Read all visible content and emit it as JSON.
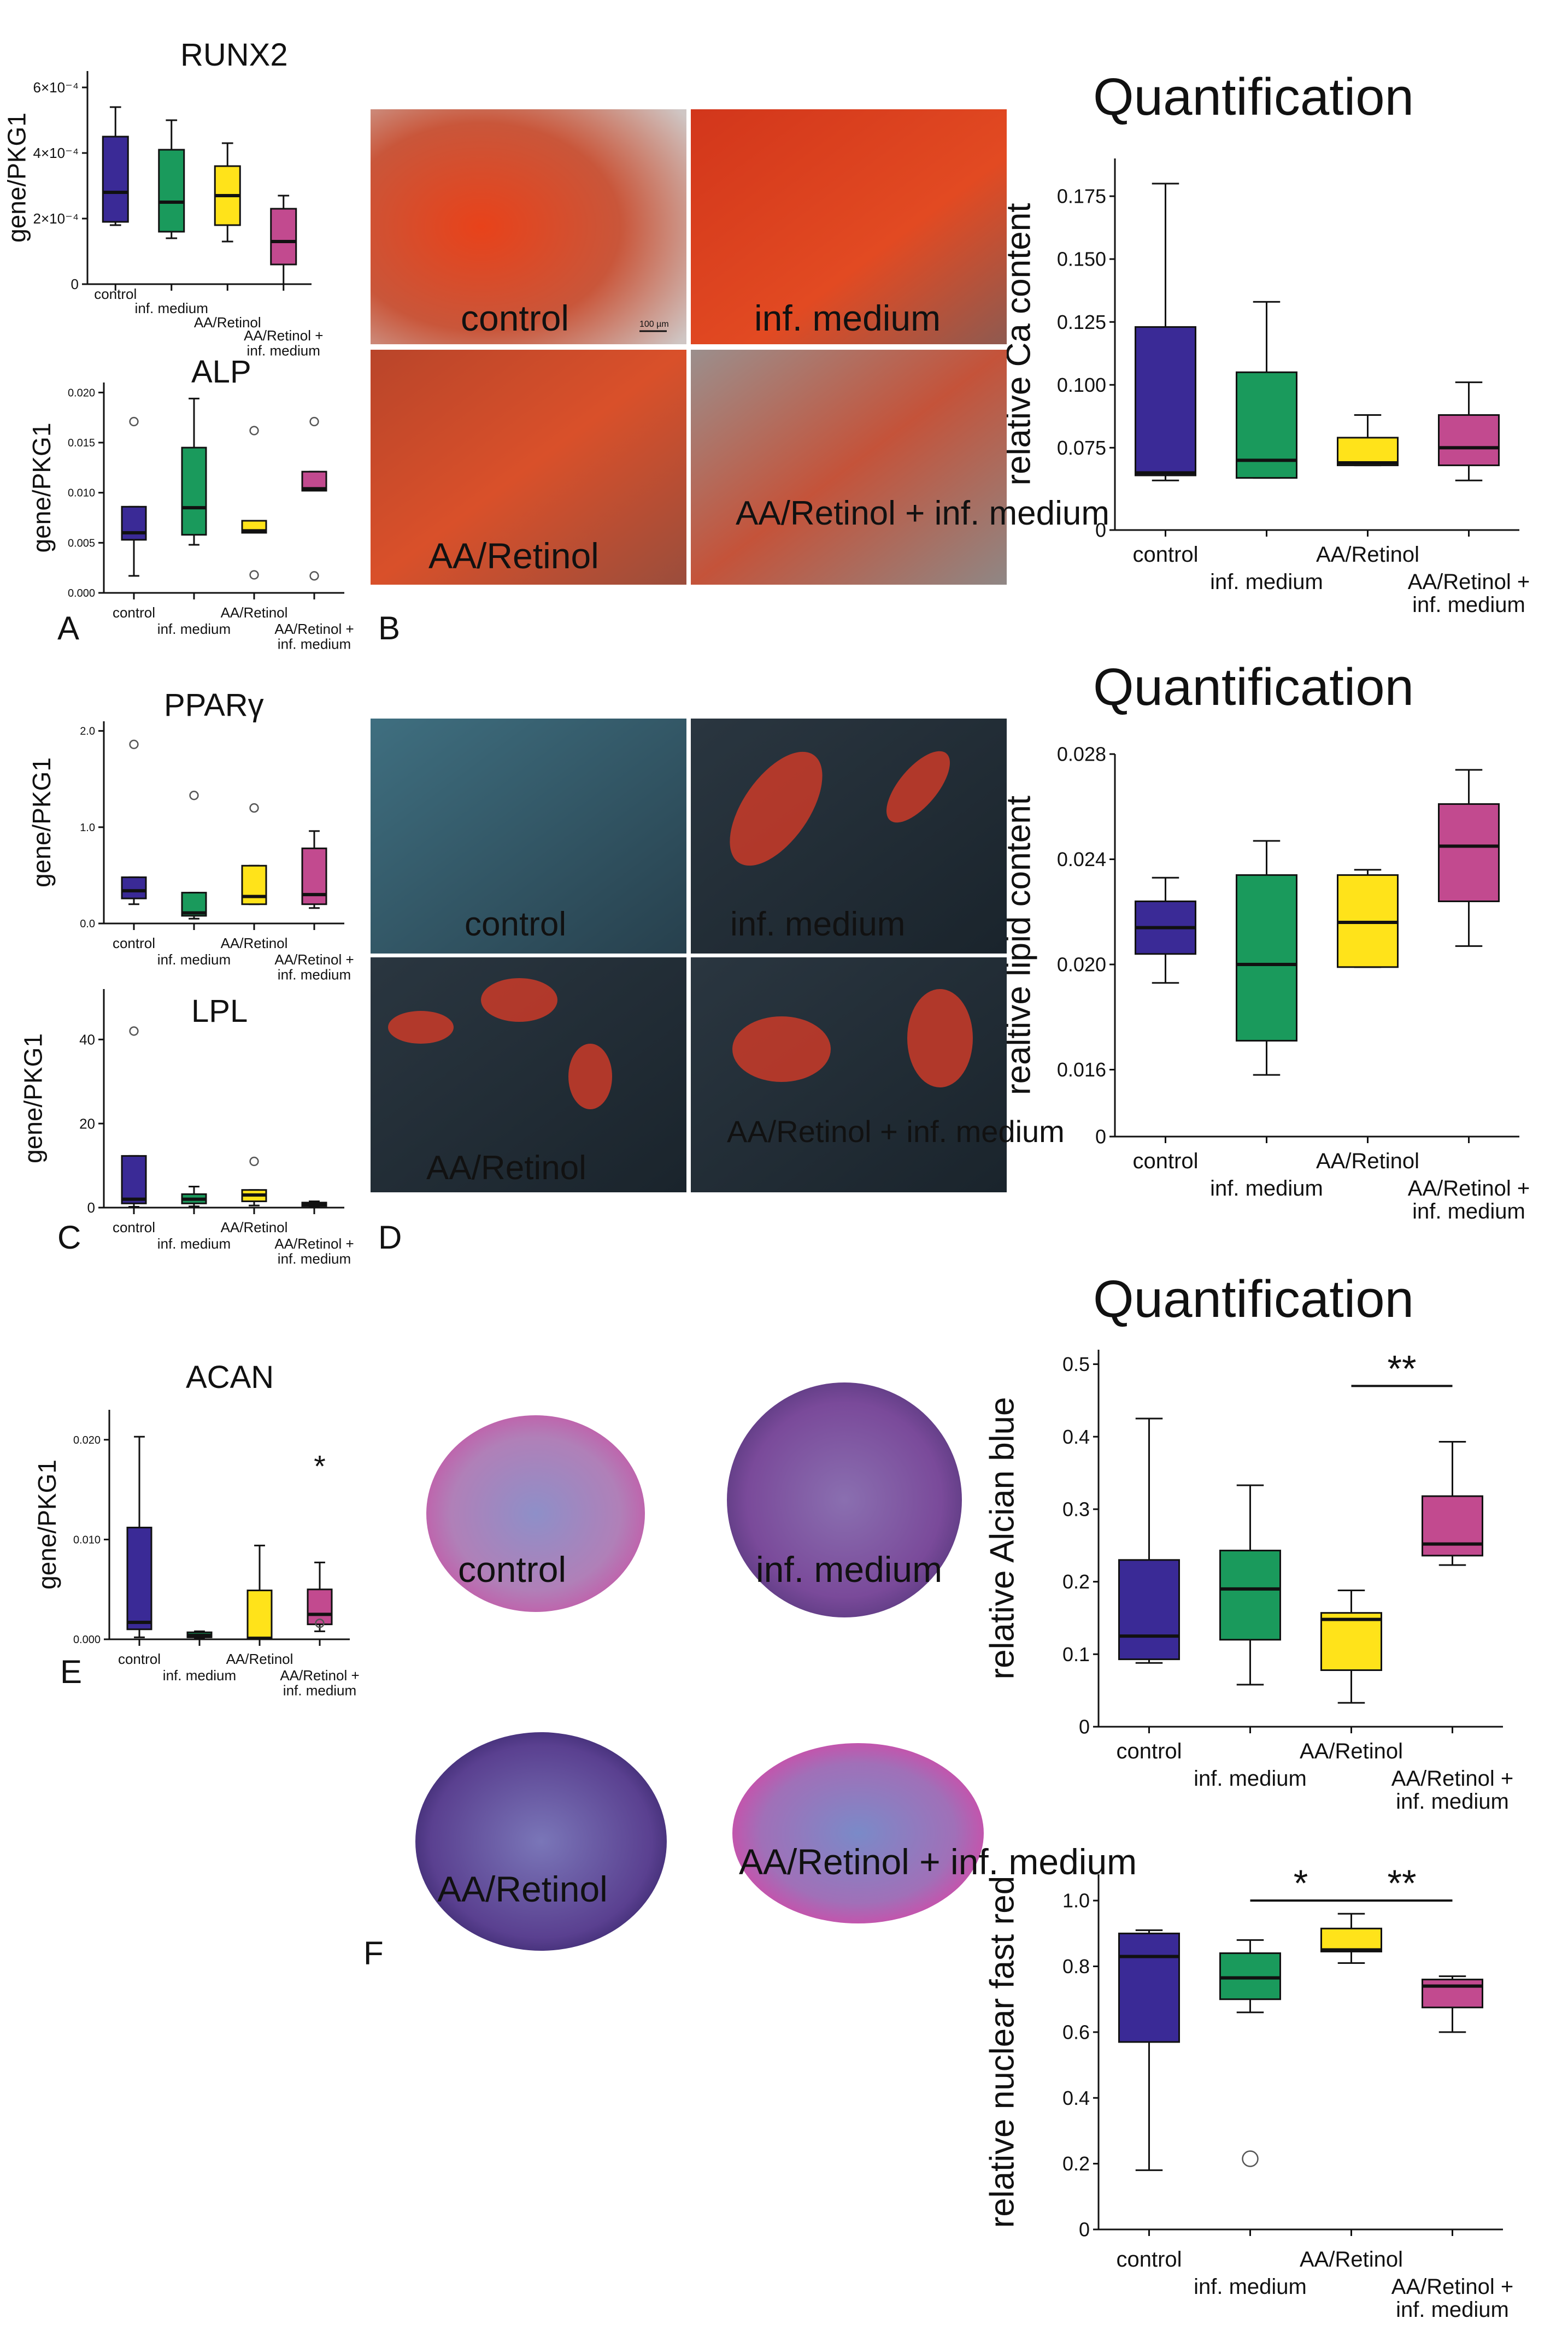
{
  "figure": {
    "panel_letters": [
      "A",
      "B",
      "C",
      "D",
      "E",
      "F"
    ],
    "micrograph_labels": {
      "B": [
        "control",
        "inf. medium",
        "AA/Retinol",
        "AA/Retinol + inf. medium"
      ],
      "D": [
        "control",
        "inf. medium",
        "AA/Retinol",
        "AA/Retinol + inf. medium"
      ],
      "F": [
        "control",
        "inf. medium",
        "AA/Retinol",
        "AA/Retinol + inf. medium"
      ]
    },
    "scale_bar_label": "100 µm",
    "colors": {
      "control": "#3a2a96",
      "inf_medium": "#1a9a5c",
      "aa_retinol": "#ffe31a",
      "aa_retinol_inf": "#c24a8f"
    }
  },
  "chart_data": [
    {
      "id": "runx2",
      "type": "box",
      "title": "RUNX2",
      "ylabel": "gene/PKG1",
      "categories": [
        "control",
        "inf. medium",
        "AA/Retinol",
        "AA/Retinol + inf. medium"
      ],
      "ylim": [
        0,
        0.00065
      ],
      "yticks": [
        {
          "v": 0,
          "label": "0"
        },
        {
          "v": 0.0002,
          "label": "2×10⁻⁴"
        },
        {
          "v": 0.0004,
          "label": "4×10⁻⁴"
        },
        {
          "v": 0.0006,
          "label": "6×10⁻⁴"
        }
      ],
      "boxes": [
        {
          "min": 0.00018,
          "q1": 0.00019,
          "median": 0.00028,
          "q3": 0.00045,
          "max": 0.00054,
          "outliers": []
        },
        {
          "min": 0.00014,
          "q1": 0.00016,
          "median": 0.00025,
          "q3": 0.00041,
          "max": 0.0005,
          "outliers": []
        },
        {
          "min": 0.00013,
          "q1": 0.00018,
          "median": 0.00027,
          "q3": 0.00036,
          "max": 0.00043,
          "outliers": []
        },
        {
          "min": 0.0,
          "q1": 6e-05,
          "median": 0.00013,
          "q3": 0.00023,
          "max": 0.00027,
          "outliers": []
        }
      ],
      "annotations": []
    },
    {
      "id": "alp",
      "type": "box",
      "title": "ALP",
      "ylabel": "gene/PKG1",
      "categories": [
        "control",
        "inf. medium",
        "AA/Retinol",
        "AA/Retinol + inf. medium"
      ],
      "ylim": [
        0,
        0.021
      ],
      "yticks": [
        {
          "v": 0,
          "label": "0.000"
        },
        {
          "v": 0.005,
          "label": "0.005"
        },
        {
          "v": 0.01,
          "label": "0.010"
        },
        {
          "v": 0.015,
          "label": "0.015"
        },
        {
          "v": 0.02,
          "label": "0.020"
        }
      ],
      "boxes": [
        {
          "min": 0.0017,
          "q1": 0.0053,
          "median": 0.006,
          "q3": 0.0086,
          "max": 0.0086,
          "outliers": [
            0.0171
          ]
        },
        {
          "min": 0.0048,
          "q1": 0.0058,
          "median": 0.0085,
          "q3": 0.0145,
          "max": 0.0194,
          "outliers": []
        },
        {
          "min": 0.006,
          "q1": 0.006,
          "median": 0.0062,
          "q3": 0.0072,
          "max": 0.0072,
          "outliers": [
            0.0162,
            0.0018
          ]
        },
        {
          "min": 0.0102,
          "q1": 0.0102,
          "median": 0.0104,
          "q3": 0.0121,
          "max": 0.0121,
          "outliers": [
            0.0171,
            0.0017
          ]
        }
      ],
      "annotations": []
    },
    {
      "id": "ca",
      "type": "box",
      "title": "Quantification",
      "ylabel": "relative Ca content",
      "categories": [
        "control",
        "inf. medium",
        "AA/Retinol",
        "AA/Retinol + inf. medium"
      ],
      "ylim": [
        0.0,
        0.19
      ],
      "axis_break": true,
      "break_at": 0.06,
      "yticks": [
        {
          "v": 0.0,
          "label": "0"
        },
        {
          "v": 0.075,
          "label": "0.075"
        },
        {
          "v": 0.1,
          "label": "0.100"
        },
        {
          "v": 0.125,
          "label": "0.125"
        },
        {
          "v": 0.15,
          "label": "0.150"
        },
        {
          "v": 0.175,
          "label": "0.175"
        }
      ],
      "boxes": [
        {
          "min": 0.062,
          "q1": 0.064,
          "median": 0.065,
          "q3": 0.123,
          "max": 0.18,
          "outliers": []
        },
        {
          "min": 0.063,
          "q1": 0.063,
          "median": 0.07,
          "q3": 0.105,
          "max": 0.133,
          "outliers": []
        },
        {
          "min": 0.068,
          "q1": 0.068,
          "median": 0.069,
          "q3": 0.079,
          "max": 0.088,
          "outliers": []
        },
        {
          "min": 0.062,
          "q1": 0.068,
          "median": 0.075,
          "q3": 0.088,
          "max": 0.101,
          "outliers": []
        }
      ],
      "annotations": []
    },
    {
      "id": "pparg",
      "type": "box",
      "title": "PPARγ",
      "ylabel": "gene/PKG1",
      "categories": [
        "control",
        "inf. medium",
        "AA/Retinol",
        "AA/Retinol + inf. medium"
      ],
      "ylim": [
        0,
        2.1
      ],
      "yticks": [
        {
          "v": 0,
          "label": "0.0"
        },
        {
          "v": 1.0,
          "label": "1.0"
        },
        {
          "v": 2.0,
          "label": "2.0"
        }
      ],
      "boxes": [
        {
          "min": 0.2,
          "q1": 0.26,
          "median": 0.34,
          "q3": 0.48,
          "max": 0.48,
          "outliers": [
            1.86
          ]
        },
        {
          "min": 0.05,
          "q1": 0.08,
          "median": 0.11,
          "q3": 0.32,
          "max": 0.32,
          "outliers": [
            1.33
          ]
        },
        {
          "min": 0.2,
          "q1": 0.2,
          "median": 0.28,
          "q3": 0.6,
          "max": 0.6,
          "outliers": [
            1.2
          ]
        },
        {
          "min": 0.16,
          "q1": 0.2,
          "median": 0.3,
          "q3": 0.78,
          "max": 0.96,
          "outliers": []
        }
      ],
      "annotations": []
    },
    {
      "id": "lpl",
      "type": "box",
      "title": "LPL",
      "ylabel": "gene/PKG1",
      "categories": [
        "control",
        "inf. medium",
        "AA/Retinol",
        "AA/Retinol + inf. medium"
      ],
      "ylim": [
        0,
        52
      ],
      "yticks": [
        {
          "v": 0,
          "label": "0"
        },
        {
          "v": 20,
          "label": "20"
        },
        {
          "v": 40,
          "label": "40"
        }
      ],
      "boxes": [
        {
          "min": 0.2,
          "q1": 1.0,
          "median": 2.0,
          "q3": 12.3,
          "max": 12.3,
          "outliers": [
            42.0
          ]
        },
        {
          "min": 0.3,
          "q1": 1.0,
          "median": 2.0,
          "q3": 3.2,
          "max": 5.0,
          "outliers": []
        },
        {
          "min": 0.5,
          "q1": 1.5,
          "median": 3.0,
          "q3": 4.2,
          "max": 4.2,
          "outliers": [
            11.0
          ]
        },
        {
          "min": 0.2,
          "q1": 0.4,
          "median": 0.8,
          "q3": 1.2,
          "max": 1.5,
          "outliers": []
        }
      ],
      "annotations": []
    },
    {
      "id": "lipid",
      "type": "box",
      "title": "Quantification",
      "ylabel": "realtive lipid content",
      "categories": [
        "control",
        "inf. medium",
        "AA/Retinol",
        "AA/Retinol + inf. medium"
      ],
      "ylim": [
        0.0,
        0.028
      ],
      "axis_break": true,
      "break_at": 0.0152,
      "yticks": [
        {
          "v": 0.0,
          "label": "0"
        },
        {
          "v": 0.016,
          "label": "0.016"
        },
        {
          "v": 0.02,
          "label": "0.020"
        },
        {
          "v": 0.024,
          "label": "0.024"
        },
        {
          "v": 0.028,
          "label": "0.028"
        }
      ],
      "boxes": [
        {
          "min": 0.0193,
          "q1": 0.0204,
          "median": 0.0214,
          "q3": 0.0224,
          "max": 0.0233,
          "outliers": []
        },
        {
          "min": 0.0158,
          "q1": 0.0171,
          "median": 0.02,
          "q3": 0.0234,
          "max": 0.0247,
          "outliers": []
        },
        {
          "min": 0.0199,
          "q1": 0.0199,
          "median": 0.0216,
          "q3": 0.0234,
          "max": 0.0236,
          "outliers": []
        },
        {
          "min": 0.0207,
          "q1": 0.0224,
          "median": 0.0245,
          "q3": 0.0261,
          "max": 0.0274,
          "outliers": []
        }
      ],
      "annotations": []
    },
    {
      "id": "acan",
      "type": "box",
      "title": "ACAN",
      "ylabel": "gene/PKG1",
      "categories": [
        "control",
        "inf. medium",
        "AA/Retinol",
        "AA/Retinol + inf. medium"
      ],
      "ylim": [
        0,
        0.023
      ],
      "yticks": [
        {
          "v": 0,
          "label": "0.000"
        },
        {
          "v": 0.01,
          "label": "0.010"
        },
        {
          "v": 0.02,
          "label": "0.020"
        }
      ],
      "boxes": [
        {
          "min": 0.0002,
          "q1": 0.001,
          "median": 0.0017,
          "q3": 0.0112,
          "max": 0.0203,
          "outliers": []
        },
        {
          "min": 0.0001,
          "q1": 0.0002,
          "median": 0.0004,
          "q3": 0.0007,
          "max": 0.0008,
          "outliers": []
        },
        {
          "min": 0.0,
          "q1": 0.0,
          "median": 0.0001,
          "q3": 0.0049,
          "max": 0.0094,
          "outliers": []
        },
        {
          "min": 0.0008,
          "q1": 0.0015,
          "median": 0.0025,
          "q3": 0.005,
          "max": 0.0077,
          "outliers": [
            0.0016
          ]
        }
      ],
      "annotations": [
        {
          "type": "star",
          "label": "*",
          "category": 3,
          "y": 0.0163
        }
      ]
    },
    {
      "id": "alcian",
      "type": "box",
      "title": "Quantification",
      "ylabel": "relative Alcian blue",
      "categories": [
        "control",
        "inf. medium",
        "AA/Retinol",
        "AA/Retinol + inf. medium"
      ],
      "ylim": [
        0,
        0.52
      ],
      "yticks": [
        {
          "v": 0,
          "label": "0"
        },
        {
          "v": 0.1,
          "label": "0.1"
        },
        {
          "v": 0.2,
          "label": "0.2"
        },
        {
          "v": 0.3,
          "label": "0.3"
        },
        {
          "v": 0.4,
          "label": "0.4"
        },
        {
          "v": 0.5,
          "label": "0.5"
        }
      ],
      "boxes": [
        {
          "min": 0.088,
          "q1": 0.093,
          "median": 0.125,
          "q3": 0.23,
          "max": 0.425,
          "outliers": []
        },
        {
          "min": 0.058,
          "q1": 0.12,
          "median": 0.19,
          "q3": 0.243,
          "max": 0.333,
          "outliers": []
        },
        {
          "min": 0.033,
          "q1": 0.078,
          "median": 0.148,
          "q3": 0.157,
          "max": 0.188,
          "outliers": []
        },
        {
          "min": 0.223,
          "q1": 0.236,
          "median": 0.252,
          "q3": 0.318,
          "max": 0.393,
          "outliers": []
        }
      ],
      "annotations": [
        {
          "type": "bracket",
          "label": "**",
          "from": 2,
          "to": 3,
          "y": 0.47
        }
      ]
    },
    {
      "id": "nfr",
      "type": "box",
      "title": "",
      "ylabel": "relative nuclear fast red",
      "categories": [
        "control",
        "inf. medium",
        "AA/Retinol",
        "AA/Retinol + inf. medium"
      ],
      "ylim": [
        0,
        1.08
      ],
      "yticks": [
        {
          "v": 0,
          "label": "0"
        },
        {
          "v": 0.2,
          "label": "0.2"
        },
        {
          "v": 0.4,
          "label": "0.4"
        },
        {
          "v": 0.6,
          "label": "0.6"
        },
        {
          "v": 0.8,
          "label": "0.8"
        },
        {
          "v": 1.0,
          "label": "1.0"
        }
      ],
      "boxes": [
        {
          "min": 0.18,
          "q1": 0.57,
          "median": 0.83,
          "q3": 0.9,
          "max": 0.91,
          "outliers": []
        },
        {
          "min": 0.66,
          "q1": 0.7,
          "median": 0.765,
          "q3": 0.84,
          "max": 0.88,
          "outliers": [
            0.215
          ]
        },
        {
          "min": 0.81,
          "q1": 0.845,
          "median": 0.85,
          "q3": 0.915,
          "max": 0.96,
          "outliers": []
        },
        {
          "min": 0.6,
          "q1": 0.675,
          "median": 0.74,
          "q3": 0.76,
          "max": 0.77,
          "outliers": []
        }
      ],
      "annotations": [
        {
          "type": "bracket",
          "label": "*",
          "from": 1,
          "to": 2,
          "y": 1.0
        },
        {
          "type": "bracket",
          "label": "**",
          "from": 2,
          "to": 3,
          "y": 1.0
        }
      ]
    }
  ]
}
